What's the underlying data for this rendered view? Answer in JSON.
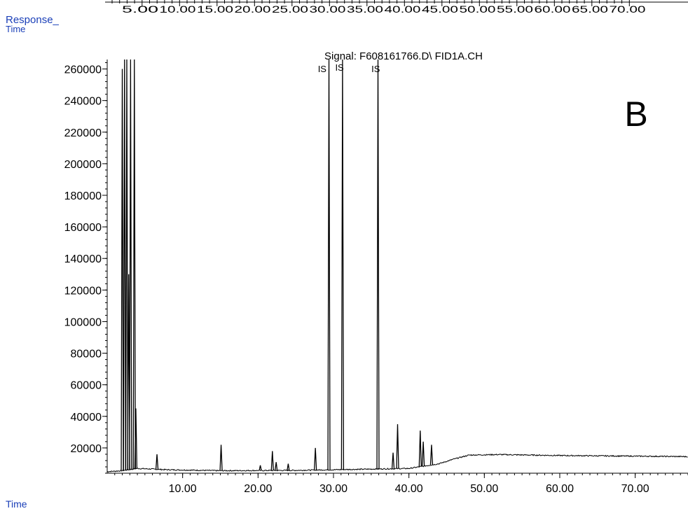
{
  "labels": {
    "response": "Response_",
    "response_sub": "Time",
    "time": "Time",
    "panel": "B",
    "top_axis_ticks": "5.00 10.00 15.00 20.00 25.00 30.00 35.00 40.00 45.00 50.00 55.00 60.00 65.00 70.00"
  },
  "colors": {
    "trace": "#000000",
    "axis": "#000000",
    "label": "#1a3fb8"
  },
  "chart_data": {
    "type": "line",
    "title": "Signal: F608161766.D\\ FID1A.CH",
    "xlabel": "Time",
    "ylabel": "Response_",
    "xlim": [
      0,
      77
    ],
    "ylim": [
      4000,
      266000
    ],
    "x_ticks": [
      10,
      20,
      30,
      40,
      50,
      60,
      70
    ],
    "x_tick_labels": [
      "10.00",
      "20.00",
      "30.00",
      "40.00",
      "50.00",
      "60.00",
      "70.00"
    ],
    "y_ticks": [
      20000,
      40000,
      60000,
      80000,
      100000,
      120000,
      140000,
      160000,
      180000,
      200000,
      220000,
      240000,
      260000
    ],
    "y_tick_labels": [
      "20000",
      "40000",
      "60000",
      "80000",
      "100000",
      "120000",
      "140000",
      "160000",
      "180000",
      "200000",
      "220000",
      "240000",
      "260000"
    ],
    "top_ticks": [
      5,
      10,
      15,
      20,
      25,
      30,
      35,
      40,
      45,
      50,
      55,
      60,
      65,
      70
    ],
    "baseline": [
      [
        0,
        5000
      ],
      [
        1.8,
        5500
      ],
      [
        4,
        7000
      ],
      [
        8,
        6200
      ],
      [
        15,
        5600
      ],
      [
        25,
        5800
      ],
      [
        40,
        7000
      ],
      [
        44,
        10000
      ],
      [
        46,
        13000
      ],
      [
        48,
        15500
      ],
      [
        52,
        15800
      ],
      [
        60,
        15200
      ],
      [
        70,
        14800
      ],
      [
        77,
        14500
      ]
    ],
    "peaks": [
      {
        "x": 2.0,
        "y": 260000
      },
      {
        "x": 2.3,
        "y": 266000
      },
      {
        "x": 2.6,
        "y": 266000
      },
      {
        "x": 2.85,
        "y": 130000
      },
      {
        "x": 3.1,
        "y": 266000
      },
      {
        "x": 3.6,
        "y": 266000
      },
      {
        "x": 3.8,
        "y": 45000
      },
      {
        "x": 6.6,
        "y": 16000
      },
      {
        "x": 15.1,
        "y": 22000
      },
      {
        "x": 20.3,
        "y": 9000
      },
      {
        "x": 21.9,
        "y": 18000
      },
      {
        "x": 22.4,
        "y": 11000
      },
      {
        "x": 24.0,
        "y": 10000
      },
      {
        "x": 27.6,
        "y": 20000
      },
      {
        "x": 29.4,
        "y": 266000
      },
      {
        "x": 31.2,
        "y": 266000
      },
      {
        "x": 35.9,
        "y": 266000
      },
      {
        "x": 37.9,
        "y": 17000
      },
      {
        "x": 38.5,
        "y": 35000
      },
      {
        "x": 41.5,
        "y": 31000
      },
      {
        "x": 41.9,
        "y": 24000
      },
      {
        "x": 43.0,
        "y": 22000
      }
    ],
    "annotations": [
      {
        "text": "IS",
        "x": 28.5,
        "y": 258000
      },
      {
        "text": "IS",
        "x": 30.8,
        "y": 259000
      },
      {
        "text": "IS",
        "x": 35.6,
        "y": 258000
      }
    ],
    "grid": false,
    "legend": "none"
  }
}
